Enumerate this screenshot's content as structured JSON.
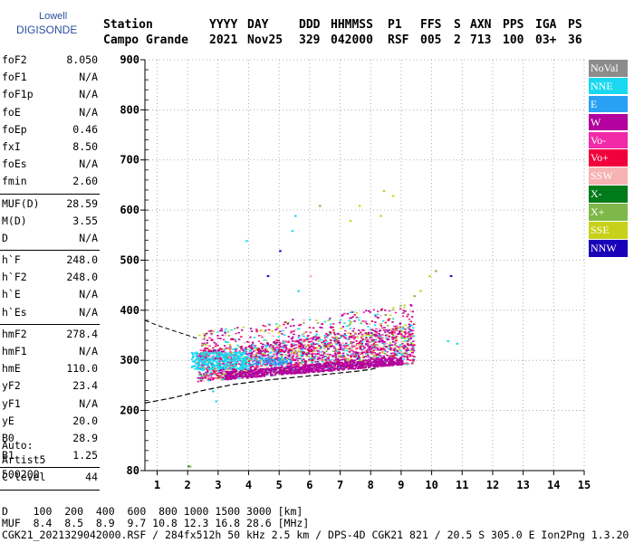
{
  "logo": {
    "line1": "Lowell",
    "line2": "DIGISONDE"
  },
  "header": {
    "row1": [
      "Station",
      "YYYY",
      "DAY",
      "DDD",
      "HHMMSS",
      "P1",
      "FFS",
      "S",
      "AXN",
      "PPS",
      "IGA",
      "PS"
    ],
    "row2": [
      "Campo Grande",
      "2021",
      "Nov25",
      "329",
      "042000",
      "RSF",
      "005",
      "2",
      "713",
      "100",
      "03+",
      "36"
    ]
  },
  "params": {
    "group1": [
      {
        "name": "foF2",
        "value": "8.050"
      },
      {
        "name": "foF1",
        "value": "N/A"
      },
      {
        "name": "foF1p",
        "value": "N/A"
      },
      {
        "name": "foE",
        "value": "N/A"
      },
      {
        "name": "foEp",
        "value": "0.46"
      },
      {
        "name": "fxI",
        "value": "8.50"
      },
      {
        "name": "foEs",
        "value": "N/A"
      },
      {
        "name": "fmin",
        "value": "2.60"
      }
    ],
    "group2": [
      {
        "name": "MUF(D)",
        "value": "28.59"
      },
      {
        "name": "M(D)",
        "value": "3.55"
      },
      {
        "name": "D",
        "value": "N/A"
      }
    ],
    "group3": [
      {
        "name": "h`F",
        "value": "248.0"
      },
      {
        "name": "h`F2",
        "value": "248.0"
      },
      {
        "name": "h`E",
        "value": "N/A"
      },
      {
        "name": "h`Es",
        "value": "N/A"
      }
    ],
    "group4": [
      {
        "name": "hmF2",
        "value": "278.4"
      },
      {
        "name": "hmF1",
        "value": "N/A"
      },
      {
        "name": "hmE",
        "value": "110.0"
      },
      {
        "name": "yF2",
        "value": "23.4"
      },
      {
        "name": "yF1",
        "value": "N/A"
      },
      {
        "name": "yE",
        "value": "20.0"
      },
      {
        "name": "B0",
        "value": "28.9"
      },
      {
        "name": "B1",
        "value": "1.25"
      }
    ],
    "group5": [
      {
        "name": "C-level",
        "value": "44"
      }
    ]
  },
  "auto": {
    "line1": "Auto:",
    "line2": "Artist5",
    "line3": "500200"
  },
  "legend": [
    {
      "label": "NoVal",
      "color": "#8c8c8c"
    },
    {
      "label": "NNE",
      "color": "#1ad8f0"
    },
    {
      "label": "E",
      "color": "#2aa0f5"
    },
    {
      "label": "W",
      "color": "#b3009e"
    },
    {
      "label": "Vo-",
      "color": "#f02aa8"
    },
    {
      "label": "Vo+",
      "color": "#f2003c"
    },
    {
      "label": "SSW",
      "color": "#f7b2b2"
    },
    {
      "label": "X-",
      "color": "#007a1a"
    },
    {
      "label": "X+",
      "color": "#7fb84a"
    },
    {
      "label": "SSE",
      "color": "#c7d11a"
    },
    {
      "label": "NNW",
      "color": "#1a00b8"
    }
  ],
  "footer": {
    "line1": "D    100  200  400  600  800 1000 1500 3000 [km]",
    "line2": "MUF  8.4  8.5  8.9  9.7 10.8 12.3 16.8 28.6 [MHz]",
    "line3": "CGK21_2021329042000.RSF / 284fx512h 50 kHz 2.5 km / DPS-4D CGK21 821 / 20.5 S 305.0 E Ion2Png 1.3.20"
  },
  "chart_data": {
    "type": "scatter",
    "xlim": [
      0.6,
      15
    ],
    "ylim": [
      80,
      900
    ],
    "xticks": [
      1,
      2,
      3,
      4,
      5,
      6,
      7,
      8,
      9,
      10,
      11,
      12,
      13,
      14,
      15
    ],
    "yticks": [
      80,
      200,
      300,
      400,
      500,
      600,
      700,
      800,
      900
    ],
    "grid": true,
    "legend_position": "right",
    "trace_upper": {
      "x": [
        0.6,
        1.0,
        1.5,
        2.0,
        2.3
      ],
      "y": [
        380,
        370,
        360,
        350,
        344
      ]
    },
    "trace_lower": {
      "x": [
        0.6,
        1.5,
        2.5,
        3.5,
        4.5,
        5.5,
        6.5,
        7.5,
        8.0,
        8.2
      ],
      "y": [
        215,
        225,
        240,
        252,
        260,
        266,
        272,
        278,
        282,
        285
      ]
    },
    "bulk_echoes": {
      "x_range": [
        2.3,
        9.4
      ],
      "height_range": [
        255,
        400
      ],
      "dominant_colors": [
        "W",
        "Vo-",
        "Vo+",
        "NNE",
        "SSE",
        "X+",
        "SSW"
      ]
    },
    "sparse_echoes": [
      {
        "x": 8.4,
        "y": 640,
        "mode": "SSE"
      },
      {
        "x": 8.7,
        "y": 630,
        "mode": "SSE"
      },
      {
        "x": 8.3,
        "y": 590,
        "mode": "SSE"
      },
      {
        "x": 7.6,
        "y": 610,
        "mode": "SSE"
      },
      {
        "x": 7.3,
        "y": 580,
        "mode": "SSE"
      },
      {
        "x": 6.3,
        "y": 610,
        "mode": "X+"
      },
      {
        "x": 5.5,
        "y": 590,
        "mode": "NNE"
      },
      {
        "x": 5.4,
        "y": 560,
        "mode": "NNE"
      },
      {
        "x": 5.0,
        "y": 520,
        "mode": "NNW"
      },
      {
        "x": 4.6,
        "y": 470,
        "mode": "NNW"
      },
      {
        "x": 5.6,
        "y": 440,
        "mode": "NNE"
      },
      {
        "x": 9.6,
        "y": 440,
        "mode": "SSE"
      },
      {
        "x": 9.9,
        "y": 470,
        "mode": "SSE"
      },
      {
        "x": 10.1,
        "y": 480,
        "mode": "X+"
      },
      {
        "x": 10.6,
        "y": 470,
        "mode": "NNW"
      },
      {
        "x": 9.4,
        "y": 430,
        "mode": "X+"
      },
      {
        "x": 6.0,
        "y": 470,
        "mode": "SSW"
      },
      {
        "x": 3.9,
        "y": 540,
        "mode": "NNE"
      },
      {
        "x": 2.9,
        "y": 220,
        "mode": "NNE"
      },
      {
        "x": 2.0,
        "y": 90,
        "mode": "X-"
      },
      {
        "x": 2.05,
        "y": 90,
        "mode": "X+"
      },
      {
        "x": 10.5,
        "y": 340,
        "mode": "NNE"
      },
      {
        "x": 10.8,
        "y": 335,
        "mode": "NNE"
      },
      {
        "x": 2.8,
        "y": 240,
        "mode": "NNE"
      }
    ]
  }
}
